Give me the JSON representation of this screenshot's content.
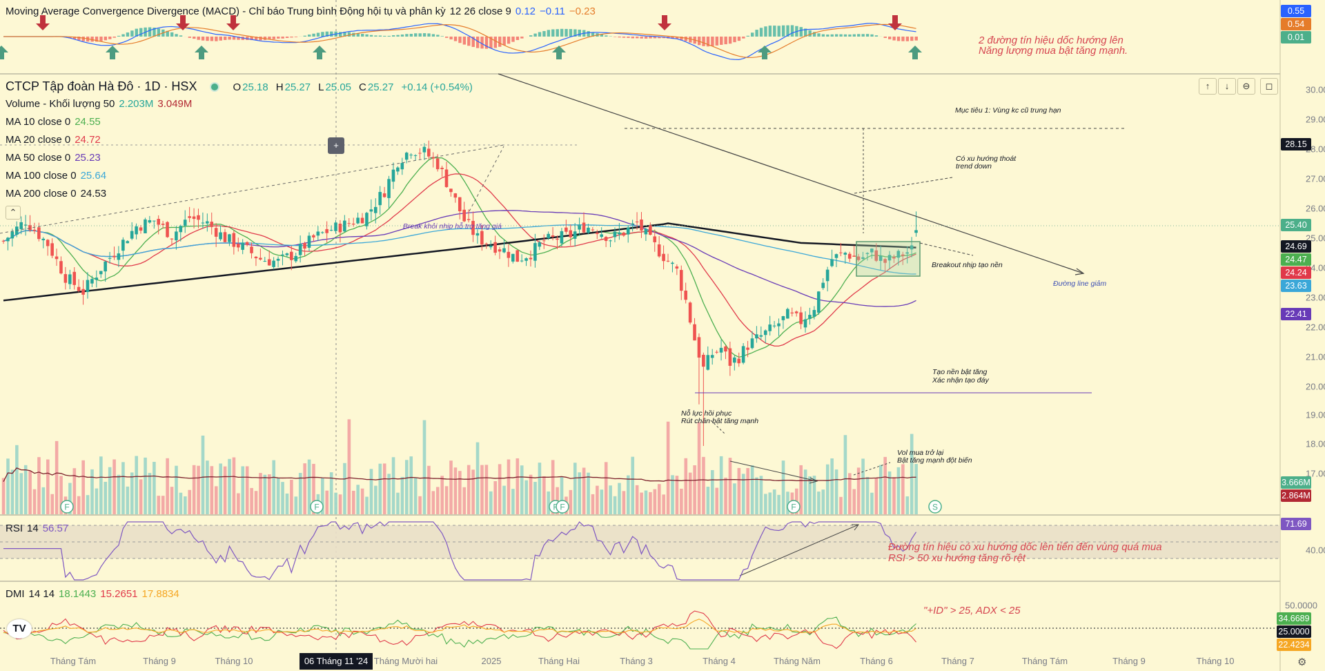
{
  "macd": {
    "title": "Moving Average Convergence Divergence (MACD) - Chỉ báo Trung bình Động hội tụ và phân kỳ",
    "params": "12 26 close 9",
    "v1": "0.12",
    "v2": "−0.11",
    "v3": "−0.23",
    "badges": [
      "0.55",
      "0.54",
      "0.01"
    ],
    "note1": "2 đường tín hiệu dốc hướng lên",
    "note2": "Năng lượng mua bật tăng mạnh."
  },
  "symbol": {
    "name": "CTCP Tập đoàn Hà Đô · 1D · HSX",
    "o_label": "O",
    "o": "25.18",
    "h_label": "H",
    "h": "25.27",
    "l_label": "L",
    "l": "25.05",
    "c_label": "C",
    "c": "25.27",
    "change": "+0.14 (+0.54%)"
  },
  "indicators": [
    {
      "label": "Volume - Khối lượng 50",
      "v1": "2.203M",
      "v2": "3.049M",
      "color": "#26a69a",
      "color2": "#b22833"
    },
    {
      "label": "MA 10 close 0",
      "v1": "24.55",
      "color": "#4caf50"
    },
    {
      "label": "MA 20 close 0",
      "v1": "24.72",
      "color": "#e0394a"
    },
    {
      "label": "MA 50 close 0",
      "v1": "25.23",
      "color": "#673ab7"
    },
    {
      "label": "MA 100 close 0",
      "v1": "25.64",
      "color": "#3aa7d8"
    },
    {
      "label": "MA 200 close 0",
      "v1": "24.53",
      "color": "#131722"
    }
  ],
  "price_badges": [
    {
      "text": "28.15",
      "bg": "#131722"
    },
    {
      "text": "25.40",
      "bg": "#4caf8a"
    },
    {
      "text": "24.69",
      "bg": "#131722"
    },
    {
      "text": "24.47",
      "bg": "#4caf50"
    },
    {
      "text": "24.24",
      "bg": "#e0394a"
    },
    {
      "text": "23.63",
      "bg": "#3aa7d8"
    },
    {
      "text": "22.41",
      "bg": "#673ab7"
    },
    {
      "text": "3.666M",
      "bg": "#4caf8a"
    },
    {
      "text": "2.864M",
      "bg": "#b22833"
    }
  ],
  "annotations": {
    "target": "Mục tiêu 1: Vùng kc cũ trung hạn",
    "trend1": "Có xu hướng thoát",
    "trend2": "trend down",
    "breakout": "Breakout nhịp tạo nền",
    "downline": "Đường line giảm",
    "base1": "Tạo nền bật tăng",
    "base2": "Xác nhận tạo đáy",
    "recovery1": "Nỗ lực hồi phục",
    "recovery2": "Rút chân bật tăng mạnh",
    "vol1": "Vol mua trở lại",
    "vol2": "Bật tăng mạnh đột biến",
    "break_support": "Break khỏi nhịp hỗ trợ tăng giá",
    "rsi1": "Đường tín hiệu có xu hướng dốc lên tiến đến vùng quá mua",
    "rsi2": "RSI > 50 xu hướng tăng rõ rệt",
    "dmi": "\"+ID\" > 25, ADX < 25"
  },
  "rsi": {
    "label": "RSI",
    "param": "14",
    "value": "56.57",
    "badge": "71.69"
  },
  "dmi": {
    "label": "DMI",
    "param": "14 14",
    "v1": "18.1443",
    "v2": "15.2651",
    "v3": "17.8834",
    "badges": [
      "34.6689",
      "25.0000",
      "22.4234"
    ]
  },
  "event_flags": [
    "F",
    "F",
    "F",
    "F",
    "F",
    "S"
  ],
  "crosshair_date": "06 Tháng 11 '24",
  "chart_data": {
    "type": "candlestick",
    "price_axis": [
      "30.00",
      "29.00",
      "28.00",
      "27.00",
      "26.00",
      "25.00",
      "24.00",
      "23.00",
      "22.00",
      "21.00",
      "20.00",
      "19.00",
      "18.00",
      "17.00"
    ],
    "rsi_axis": [
      "40.00"
    ],
    "dmi_axis": [
      "50.0000"
    ],
    "x_labels": [
      "Tháng Tám",
      "Tháng 9",
      "Tháng 10",
      "Tháng Mười hai",
      "2025",
      "Tháng Hai",
      "Tháng 3",
      "Tháng 4",
      "Tháng Năm",
      "Tháng 6",
      "Tháng 7",
      "Tháng Tám",
      "Tháng 9",
      "Tháng 10"
    ],
    "close_path": [
      [
        0,
        24.9
      ],
      [
        5,
        25.6
      ],
      [
        10,
        24.8
      ],
      [
        14,
        23.7
      ],
      [
        18,
        23.2
      ],
      [
        22,
        24.0
      ],
      [
        26,
        24.7
      ],
      [
        30,
        25.4
      ],
      [
        34,
        25.6
      ],
      [
        38,
        25.1
      ],
      [
        42,
        25.7
      ],
      [
        46,
        25.5
      ],
      [
        50,
        25.0
      ],
      [
        54,
        24.7
      ],
      [
        58,
        24.3
      ],
      [
        62,
        24.2
      ],
      [
        66,
        24.5
      ],
      [
        70,
        25.0
      ],
      [
        74,
        25.3
      ],
      [
        78,
        25.5
      ],
      [
        82,
        25.8
      ],
      [
        86,
        26.6
      ],
      [
        89,
        27.6
      ],
      [
        92,
        28.0
      ],
      [
        95,
        27.9
      ],
      [
        98,
        27.5
      ],
      [
        101,
        26.6
      ],
      [
        104,
        25.6
      ],
      [
        107,
        25.0
      ],
      [
        110,
        24.8
      ],
      [
        113,
        24.6
      ],
      [
        116,
        24.3
      ],
      [
        119,
        24.5
      ],
      [
        122,
        24.9
      ],
      [
        125,
        25.0
      ],
      [
        128,
        25.1
      ],
      [
        131,
        25.4
      ],
      [
        134,
        25.3
      ],
      [
        137,
        25.0
      ],
      [
        140,
        25.2
      ],
      [
        143,
        25.5
      ],
      [
        146,
        24.9
      ],
      [
        149,
        24.4
      ],
      [
        152,
        23.9
      ],
      [
        154,
        22.9
      ],
      [
        156,
        21.6
      ],
      [
        158,
        20.6
      ],
      [
        160,
        21.1
      ],
      [
        162,
        21.3
      ],
      [
        164,
        20.8
      ],
      [
        166,
        21.0
      ],
      [
        168,
        21.4
      ],
      [
        171,
        21.7
      ],
      [
        174,
        22.0
      ],
      [
        177,
        22.4
      ],
      [
        180,
        22.2
      ],
      [
        183,
        22.7
      ],
      [
        185,
        23.6
      ],
      [
        187,
        24.3
      ],
      [
        190,
        24.5
      ],
      [
        193,
        24.3
      ],
      [
        196,
        24.5
      ],
      [
        199,
        24.2
      ],
      [
        202,
        24.4
      ],
      [
        205,
        24.6
      ],
      [
        206,
        25.27
      ]
    ],
    "volume": {
      "unit": "M",
      "last": "2.203",
      "ma50": "3.049"
    },
    "ohlc_last": {
      "open": 25.18,
      "high": 25.27,
      "low": 25.05,
      "close": 25.27
    }
  }
}
